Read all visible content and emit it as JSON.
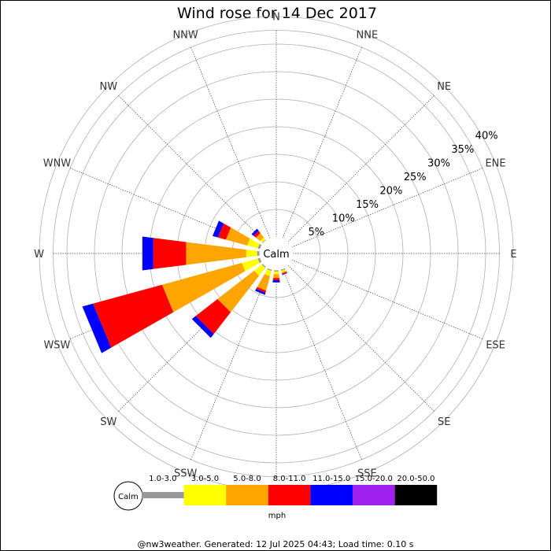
{
  "chart_data": {
    "type": "windrose",
    "title": "Wind rose for 14 Dec 2017",
    "calm_label": "Calm",
    "unit_label": "mph",
    "directions": [
      "N",
      "NNE",
      "NE",
      "ENE",
      "E",
      "ESE",
      "SE",
      "SSE",
      "S",
      "SSW",
      "SW",
      "WSW",
      "W",
      "WNW",
      "NW",
      "NNW"
    ],
    "ring_values": [
      5,
      10,
      15,
      20,
      25,
      30,
      35,
      40
    ],
    "ring_labels": [
      "5%",
      "10%",
      "15%",
      "20%",
      "25%",
      "30%",
      "35%",
      "40%"
    ],
    "speed_bins": [
      {
        "label": "1.0-3.0",
        "color": "#999999"
      },
      {
        "label": "3.0-5.0",
        "color": "#ffff00"
      },
      {
        "label": "5.0-8.0",
        "color": "#ffa500"
      },
      {
        "label": "8.0-11.0",
        "color": "#ff0000"
      },
      {
        "label": "11.0-15.0",
        "color": "#0000ff"
      },
      {
        "label": "15.0-20.0",
        "color": "#a020f0"
      },
      {
        "label": "20.0-50.0",
        "color": "#000000"
      }
    ],
    "values": [
      [
        0,
        0,
        0,
        0,
        0,
        0,
        0
      ],
      [
        0,
        0,
        0,
        0,
        0,
        0,
        0
      ],
      [
        0,
        0,
        0,
        0,
        0,
        0,
        0
      ],
      [
        0,
        0,
        0,
        0,
        0,
        0,
        0
      ],
      [
        0,
        0,
        0,
        0,
        0,
        0,
        0
      ],
      [
        0,
        0,
        0,
        0,
        0,
        0,
        0
      ],
      [
        0,
        0,
        0,
        0,
        0,
        0,
        0
      ],
      [
        0.3,
        0.3,
        0.2,
        0.2,
        0.1,
        0,
        0
      ],
      [
        0.3,
        0.5,
        0.7,
        0.4,
        0.4,
        0,
        0
      ],
      [
        0.3,
        1.0,
        2.7,
        0.4,
        0.4,
        0,
        0
      ],
      [
        0.3,
        1.8,
        8.4,
        5.0,
        0.9,
        0,
        0
      ],
      [
        0.5,
        3.0,
        15.0,
        13.0,
        2.0,
        0,
        0
      ],
      [
        0.5,
        2.0,
        11.0,
        6.0,
        2.0,
        0,
        0
      ],
      [
        0.5,
        2.0,
        4.0,
        1.5,
        1.0,
        0,
        0
      ],
      [
        0.2,
        0.5,
        1.0,
        0.5,
        0.5,
        0,
        0
      ],
      [
        0,
        0,
        0,
        0,
        0,
        0,
        0
      ]
    ],
    "legend_position": "bottom",
    "grid": true
  },
  "footer": "@nw3weather. Generated: 12 Jul 2025 04:43; Load time: 0.10 s"
}
